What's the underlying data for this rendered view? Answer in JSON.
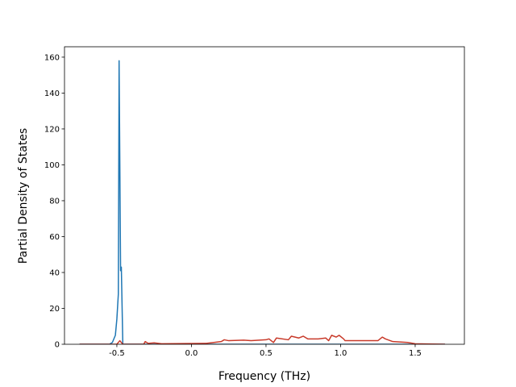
{
  "chart_data": {
    "type": "line",
    "xlabel": "Frequency (THz)",
    "ylabel": "Partial Density of States",
    "xlim": [
      -0.851,
      1.83
    ],
    "ylim": [
      0,
      165.8
    ],
    "xticks": [
      -0.5,
      {
        "value": 0,
        "label": "0.0"
      },
      0.5,
      {
        "value": 1,
        "label": "1.0"
      },
      1.5
    ],
    "yticks": [
      0,
      20,
      40,
      60,
      80,
      100,
      120,
      140,
      160
    ],
    "grid": false,
    "series": [
      {
        "color": "#1f77b4",
        "x": [
          -0.75,
          -0.55,
          -0.53,
          -0.51,
          -0.5,
          -0.49,
          -0.485,
          -0.48,
          -0.475,
          -0.47,
          -0.46,
          -0.45,
          1.7
        ],
        "values": [
          0,
          0,
          1,
          5,
          14,
          28,
          158,
          100,
          41,
          43,
          0,
          0,
          0
        ]
      },
      {
        "color": "#c83a2a",
        "x": [
          -0.75,
          -0.5,
          -0.48,
          -0.46,
          -0.32,
          -0.31,
          -0.29,
          -0.25,
          -0.2,
          0.1,
          0.2,
          0.22,
          0.25,
          0.35,
          0.4,
          0.5,
          0.52,
          0.55,
          0.57,
          0.65,
          0.67,
          0.72,
          0.75,
          0.78,
          0.85,
          0.9,
          0.92,
          0.94,
          0.97,
          0.99,
          1.02,
          1.03,
          1.25,
          1.28,
          1.3,
          1.35,
          1.45,
          1.5,
          1.7
        ],
        "values": [
          0,
          0,
          2,
          0,
          0,
          1.5,
          0.5,
          0.8,
          0.3,
          0.5,
          1.5,
          2.5,
          2,
          2.3,
          2,
          2.5,
          3,
          1,
          3.5,
          2.5,
          4.5,
          3.5,
          4.5,
          3,
          3,
          3.5,
          2,
          5,
          4,
          5,
          3,
          2,
          2,
          4,
          3,
          1.5,
          1,
          0.3,
          0
        ]
      }
    ]
  }
}
